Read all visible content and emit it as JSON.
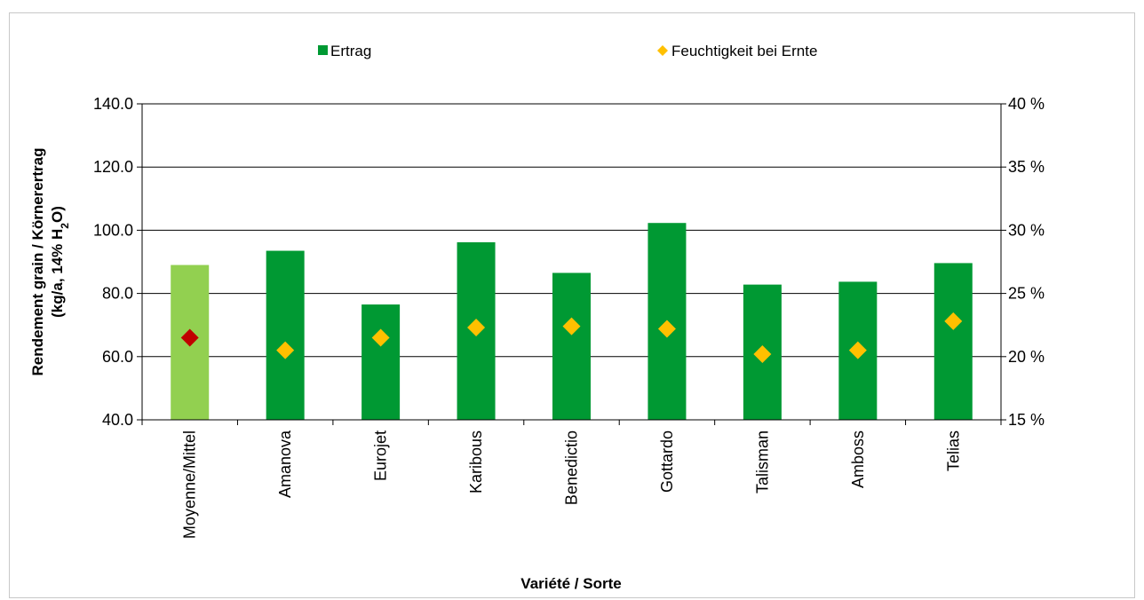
{
  "chart_data": {
    "type": "bar",
    "xlabel": "Variété / Sorte",
    "ylabel_line1": "Rendement grain / Körnerertrag",
    "ylabel_line2_prefix": "(kg/a, 14% H",
    "ylabel_line2_sub": "2",
    "ylabel_line2_suffix": "O)",
    "ylim": [
      40,
      140
    ],
    "y_ticks": [
      "140.0",
      "120.0",
      "100.0",
      "80.0",
      "60.0",
      "40.0"
    ],
    "y2lim": [
      15,
      40
    ],
    "y2_ticks": [
      "40 %",
      "35 %",
      "30 %",
      "25 %",
      "20 %",
      "15 %"
    ],
    "categories": [
      "Moyenne/Mittel",
      "Amanova",
      "Eurojet",
      "Karibous",
      "Benedictio",
      "Gottardo",
      "Talisman",
      "Amboss",
      "Telias"
    ],
    "series": [
      {
        "name": "Ertrag",
        "kind": "bar",
        "axis": "left",
        "color": "#009933",
        "highlight_color": "#92d050",
        "highlight_index": 0,
        "values": [
          89.0,
          93.5,
          76.5,
          96.2,
          86.5,
          102.3,
          82.8,
          83.7,
          89.6
        ]
      },
      {
        "name": "Feuchtigkeit bei Ernte",
        "kind": "marker",
        "axis": "right",
        "color": "#ffc000",
        "highlight_color": "#c00000",
        "highlight_index": 0,
        "values": [
          21.5,
          20.5,
          21.5,
          22.3,
          22.4,
          22.2,
          20.2,
          20.5,
          22.8
        ]
      }
    ],
    "grid": true,
    "legend_position": "top"
  }
}
